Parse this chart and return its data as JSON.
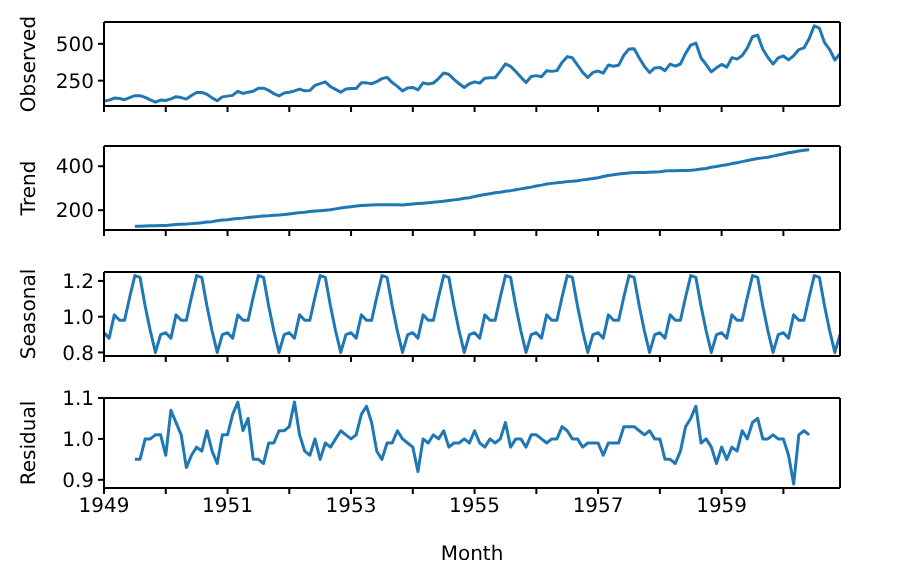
{
  "chart_data": [
    {
      "type": "line",
      "ylabel": "Observed",
      "tick_labels": "y",
      "xlim": [
        "1949-01",
        "1960-12"
      ],
      "ylim": [
        78,
        648
      ],
      "yticks": [
        250,
        500
      ],
      "xticks": [
        {
          "value": "1949-01",
          "label": null
        },
        {
          "value": "1950-01",
          "label": null
        },
        {
          "value": "1951-01",
          "label": null
        },
        {
          "value": "1952-01",
          "label": null
        },
        {
          "value": "1953-01",
          "label": null
        },
        {
          "value": "1954-01",
          "label": null
        },
        {
          "value": "1955-01",
          "label": null
        },
        {
          "value": "1956-01",
          "label": null
        },
        {
          "value": "1957-01",
          "label": null
        },
        {
          "value": "1958-01",
          "label": null
        },
        {
          "value": "1959-01",
          "label": null
        },
        {
          "value": "1960-01",
          "label": null
        }
      ],
      "x": [
        "1949-01",
        "1949-02",
        "1949-03",
        "1949-04",
        "1949-05",
        "1949-06",
        "1949-07",
        "1949-08",
        "1949-09",
        "1949-10",
        "1949-11",
        "1949-12",
        "1950-01",
        "1950-02",
        "1950-03",
        "1950-04",
        "1950-05",
        "1950-06",
        "1950-07",
        "1950-08",
        "1950-09",
        "1950-10",
        "1950-11",
        "1950-12",
        "1951-01",
        "1951-02",
        "1951-03",
        "1951-04",
        "1951-05",
        "1951-06",
        "1951-07",
        "1951-08",
        "1951-09",
        "1951-10",
        "1951-11",
        "1951-12",
        "1952-01",
        "1952-02",
        "1952-03",
        "1952-04",
        "1952-05",
        "1952-06",
        "1952-07",
        "1952-08",
        "1952-09",
        "1952-10",
        "1952-11",
        "1952-12",
        "1953-01",
        "1953-02",
        "1953-03",
        "1953-04",
        "1953-05",
        "1953-06",
        "1953-07",
        "1953-08",
        "1953-09",
        "1953-10",
        "1953-11",
        "1953-12",
        "1954-01",
        "1954-02",
        "1954-03",
        "1954-04",
        "1954-05",
        "1954-06",
        "1954-07",
        "1954-08",
        "1954-09",
        "1954-10",
        "1954-11",
        "1954-12",
        "1955-01",
        "1955-02",
        "1955-03",
        "1955-04",
        "1955-05",
        "1955-06",
        "1955-07",
        "1955-08",
        "1955-09",
        "1955-10",
        "1955-11",
        "1955-12",
        "1956-01",
        "1956-02",
        "1956-03",
        "1956-04",
        "1956-05",
        "1956-06",
        "1956-07",
        "1956-08",
        "1956-09",
        "1956-10",
        "1956-11",
        "1956-12",
        "1957-01",
        "1957-02",
        "1957-03",
        "1957-04",
        "1957-05",
        "1957-06",
        "1957-07",
        "1957-08",
        "1957-09",
        "1957-10",
        "1957-11",
        "1957-12",
        "1958-01",
        "1958-02",
        "1958-03",
        "1958-04",
        "1958-05",
        "1958-06",
        "1958-07",
        "1958-08",
        "1958-09",
        "1958-10",
        "1958-11",
        "1958-12",
        "1959-01",
        "1959-02",
        "1959-03",
        "1959-04",
        "1959-05",
        "1959-06",
        "1959-07",
        "1959-08",
        "1959-09",
        "1959-10",
        "1959-11",
        "1959-12",
        "1960-01",
        "1960-02",
        "1960-03",
        "1960-04",
        "1960-05",
        "1960-06",
        "1960-07",
        "1960-08",
        "1960-09",
        "1960-10",
        "1960-11",
        "1960-12"
      ],
      "series": [
        {
          "color": "#1f77b4",
          "values": [
            112,
            118,
            132,
            129,
            121,
            135,
            148,
            148,
            136,
            119,
            104,
            118,
            115,
            126,
            141,
            135,
            125,
            149,
            170,
            170,
            158,
            133,
            114,
            140,
            145,
            150,
            178,
            163,
            172,
            178,
            199,
            199,
            184,
            162,
            146,
            166,
            171,
            180,
            193,
            181,
            183,
            218,
            230,
            242,
            209,
            191,
            172,
            194,
            196,
            196,
            236,
            235,
            229,
            243,
            264,
            272,
            237,
            211,
            180,
            201,
            204,
            188,
            235,
            227,
            234,
            264,
            302,
            293,
            259,
            229,
            203,
            229,
            242,
            233,
            267,
            269,
            270,
            315,
            364,
            347,
            312,
            274,
            237,
            278,
            284,
            277,
            317,
            313,
            318,
            374,
            413,
            405,
            355,
            306,
            271,
            306,
            315,
            301,
            356,
            348,
            355,
            422,
            465,
            467,
            404,
            347,
            305,
            336,
            340,
            318,
            362,
            348,
            363,
            435,
            491,
            505,
            404,
            359,
            310,
            337,
            360,
            342,
            406,
            396,
            420,
            472,
            548,
            559,
            463,
            407,
            362,
            405,
            417,
            391,
            419,
            461,
            472,
            535,
            622,
            606,
            508,
            461,
            390,
            432
          ]
        }
      ]
    },
    {
      "type": "line",
      "ylabel": "Trend",
      "tick_labels": "y",
      "xlim": [
        "1949-01",
        "1960-12"
      ],
      "ylim": [
        110,
        492
      ],
      "yticks": [
        200,
        400
      ],
      "xticks": [
        {
          "value": "1949-01",
          "label": null
        },
        {
          "value": "1950-01",
          "label": null
        },
        {
          "value": "1951-01",
          "label": null
        },
        {
          "value": "1952-01",
          "label": null
        },
        {
          "value": "1953-01",
          "label": null
        },
        {
          "value": "1954-01",
          "label": null
        },
        {
          "value": "1955-01",
          "label": null
        },
        {
          "value": "1956-01",
          "label": null
        },
        {
          "value": "1957-01",
          "label": null
        },
        {
          "value": "1958-01",
          "label": null
        },
        {
          "value": "1959-01",
          "label": null
        },
        {
          "value": "1960-01",
          "label": null
        }
      ],
      "x": [
        "1949-07",
        "1949-08",
        "1949-09",
        "1949-10",
        "1949-11",
        "1949-12",
        "1950-01",
        "1950-02",
        "1950-03",
        "1950-04",
        "1950-05",
        "1950-06",
        "1950-07",
        "1950-08",
        "1950-09",
        "1950-10",
        "1950-11",
        "1950-12",
        "1951-01",
        "1951-02",
        "1951-03",
        "1951-04",
        "1951-05",
        "1951-06",
        "1951-07",
        "1951-08",
        "1951-09",
        "1951-10",
        "1951-11",
        "1951-12",
        "1952-01",
        "1952-02",
        "1952-03",
        "1952-04",
        "1952-05",
        "1952-06",
        "1952-07",
        "1952-08",
        "1952-09",
        "1952-10",
        "1952-11",
        "1952-12",
        "1953-01",
        "1953-02",
        "1953-03",
        "1953-04",
        "1953-05",
        "1953-06",
        "1953-07",
        "1953-08",
        "1953-09",
        "1953-10",
        "1953-11",
        "1953-12",
        "1954-01",
        "1954-02",
        "1954-03",
        "1954-04",
        "1954-05",
        "1954-06",
        "1954-07",
        "1954-08",
        "1954-09",
        "1954-10",
        "1954-11",
        "1954-12",
        "1955-01",
        "1955-02",
        "1955-03",
        "1955-04",
        "1955-05",
        "1955-06",
        "1955-07",
        "1955-08",
        "1955-09",
        "1955-10",
        "1955-11",
        "1955-12",
        "1956-01",
        "1956-02",
        "1956-03",
        "1956-04",
        "1956-05",
        "1956-06",
        "1956-07",
        "1956-08",
        "1956-09",
        "1956-10",
        "1956-11",
        "1956-12",
        "1957-01",
        "1957-02",
        "1957-03",
        "1957-04",
        "1957-05",
        "1957-06",
        "1957-07",
        "1957-08",
        "1957-09",
        "1957-10",
        "1957-11",
        "1957-12",
        "1958-01",
        "1958-02",
        "1958-03",
        "1958-04",
        "1958-05",
        "1958-06",
        "1958-07",
        "1958-08",
        "1958-09",
        "1958-10",
        "1958-11",
        "1958-12",
        "1959-01",
        "1959-02",
        "1959-03",
        "1959-04",
        "1959-05",
        "1959-06",
        "1959-07",
        "1959-08",
        "1959-09",
        "1959-10",
        "1959-11",
        "1959-12",
        "1960-01",
        "1960-02",
        "1960-03",
        "1960-04",
        "1960-05",
        "1960-06"
      ],
      "series": [
        {
          "color": "#1f77b4",
          "values": [
            127,
            127,
            128,
            129,
            129,
            130,
            131,
            133,
            135,
            136,
            137,
            139,
            141,
            143,
            146,
            148,
            152,
            155,
            157,
            160,
            162,
            164,
            167,
            169,
            171,
            174,
            175,
            177,
            178,
            180,
            183,
            186,
            189,
            191,
            194,
            196,
            198,
            200,
            202,
            206,
            210,
            213,
            216,
            219,
            221,
            223,
            224,
            225,
            225,
            225,
            225,
            225,
            224,
            226,
            228,
            230,
            232,
            234,
            236,
            238,
            241,
            244,
            247,
            250,
            254,
            257,
            262,
            267,
            271,
            275,
            279,
            282,
            286,
            289,
            293,
            297,
            301,
            305,
            310,
            314,
            319,
            322,
            325,
            327,
            330,
            332,
            334,
            338,
            341,
            344,
            348,
            353,
            358,
            361,
            365,
            367,
            369,
            371,
            372,
            372,
            373,
            374,
            375,
            378,
            380,
            380,
            381,
            381,
            382,
            384,
            387,
            390,
            395,
            399,
            403,
            407,
            412,
            416,
            421,
            426,
            431,
            435,
            438,
            441,
            446,
            451,
            456,
            461,
            465,
            469,
            473,
            475
          ]
        }
      ]
    },
    {
      "type": "line",
      "ylabel": "Seasonal",
      "tick_labels": "y",
      "xlim": [
        "1949-01",
        "1960-12"
      ],
      "ylim": [
        0.78,
        1.25
      ],
      "yticks": [
        0.8,
        {
          "value": 1,
          "label": "1.0"
        },
        1.2
      ],
      "xticks": [
        {
          "value": "1949-01",
          "label": null
        },
        {
          "value": "1950-01",
          "label": null
        },
        {
          "value": "1951-01",
          "label": null
        },
        {
          "value": "1952-01",
          "label": null
        },
        {
          "value": "1953-01",
          "label": null
        },
        {
          "value": "1954-01",
          "label": null
        },
        {
          "value": "1955-01",
          "label": null
        },
        {
          "value": "1956-01",
          "label": null
        },
        {
          "value": "1957-01",
          "label": null
        },
        {
          "value": "1958-01",
          "label": null
        },
        {
          "value": "1959-01",
          "label": null
        },
        {
          "value": "1960-01",
          "label": null
        }
      ],
      "x": [
        "1949-01",
        "1949-02",
        "1949-03",
        "1949-04",
        "1949-05",
        "1949-06",
        "1949-07",
        "1949-08",
        "1949-09",
        "1949-10",
        "1949-11",
        "1949-12",
        "1950-01",
        "1950-02",
        "1950-03",
        "1950-04",
        "1950-05",
        "1950-06",
        "1950-07",
        "1950-08",
        "1950-09",
        "1950-10",
        "1950-11",
        "1950-12",
        "1951-01",
        "1951-02",
        "1951-03",
        "1951-04",
        "1951-05",
        "1951-06",
        "1951-07",
        "1951-08",
        "1951-09",
        "1951-10",
        "1951-11",
        "1951-12",
        "1952-01",
        "1952-02",
        "1952-03",
        "1952-04",
        "1952-05",
        "1952-06",
        "1952-07",
        "1952-08",
        "1952-09",
        "1952-10",
        "1952-11",
        "1952-12",
        "1953-01",
        "1953-02",
        "1953-03",
        "1953-04",
        "1953-05",
        "1953-06",
        "1953-07",
        "1953-08",
        "1953-09",
        "1953-10",
        "1953-11",
        "1953-12",
        "1954-01",
        "1954-02",
        "1954-03",
        "1954-04",
        "1954-05",
        "1954-06",
        "1954-07",
        "1954-08",
        "1954-09",
        "1954-10",
        "1954-11",
        "1954-12",
        "1955-01",
        "1955-02",
        "1955-03",
        "1955-04",
        "1955-05",
        "1955-06",
        "1955-07",
        "1955-08",
        "1955-09",
        "1955-10",
        "1955-11",
        "1955-12",
        "1956-01",
        "1956-02",
        "1956-03",
        "1956-04",
        "1956-05",
        "1956-06",
        "1956-07",
        "1956-08",
        "1956-09",
        "1956-10",
        "1956-11",
        "1956-12",
        "1957-01",
        "1957-02",
        "1957-03",
        "1957-04",
        "1957-05",
        "1957-06",
        "1957-07",
        "1957-08",
        "1957-09",
        "1957-10",
        "1957-11",
        "1957-12",
        "1958-01",
        "1958-02",
        "1958-03",
        "1958-04",
        "1958-05",
        "1958-06",
        "1958-07",
        "1958-08",
        "1958-09",
        "1958-10",
        "1958-11",
        "1958-12",
        "1959-01",
        "1959-02",
        "1959-03",
        "1959-04",
        "1959-05",
        "1959-06",
        "1959-07",
        "1959-08",
        "1959-09",
        "1959-10",
        "1959-11",
        "1959-12",
        "1960-01",
        "1960-02",
        "1960-03",
        "1960-04",
        "1960-05",
        "1960-06",
        "1960-07",
        "1960-08",
        "1960-09",
        "1960-10",
        "1960-11",
        "1960-12"
      ],
      "series": [
        {
          "color": "#1f77b4",
          "values": [
            0.91,
            0.88,
            1.01,
            0.98,
            0.98,
            1.11,
            1.23,
            1.22,
            1.06,
            0.92,
            0.8,
            0.9,
            0.91,
            0.88,
            1.01,
            0.98,
            0.98,
            1.11,
            1.23,
            1.22,
            1.06,
            0.92,
            0.8,
            0.9,
            0.91,
            0.88,
            1.01,
            0.98,
            0.98,
            1.11,
            1.23,
            1.22,
            1.06,
            0.92,
            0.8,
            0.9,
            0.91,
            0.88,
            1.01,
            0.98,
            0.98,
            1.11,
            1.23,
            1.22,
            1.06,
            0.92,
            0.8,
            0.9,
            0.91,
            0.88,
            1.01,
            0.98,
            0.98,
            1.11,
            1.23,
            1.22,
            1.06,
            0.92,
            0.8,
            0.9,
            0.91,
            0.88,
            1.01,
            0.98,
            0.98,
            1.11,
            1.23,
            1.22,
            1.06,
            0.92,
            0.8,
            0.9,
            0.91,
            0.88,
            1.01,
            0.98,
            0.98,
            1.11,
            1.23,
            1.22,
            1.06,
            0.92,
            0.8,
            0.9,
            0.91,
            0.88,
            1.01,
            0.98,
            0.98,
            1.11,
            1.23,
            1.22,
            1.06,
            0.92,
            0.8,
            0.9,
            0.91,
            0.88,
            1.01,
            0.98,
            0.98,
            1.11,
            1.23,
            1.22,
            1.06,
            0.92,
            0.8,
            0.9,
            0.91,
            0.88,
            1.01,
            0.98,
            0.98,
            1.11,
            1.23,
            1.22,
            1.06,
            0.92,
            0.8,
            0.9,
            0.91,
            0.88,
            1.01,
            0.98,
            0.98,
            1.11,
            1.23,
            1.22,
            1.06,
            0.92,
            0.8,
            0.9,
            0.91,
            0.88,
            1.01,
            0.98,
            0.98,
            1.11,
            1.23,
            1.22,
            1.06,
            0.92,
            0.8,
            0.9
          ]
        }
      ]
    },
    {
      "type": "line",
      "ylabel": "Residual",
      "xlabel": "Month",
      "xlim": [
        "1949-01",
        "1960-12"
      ],
      "ylim": [
        0.88,
        1.1
      ],
      "yticks": [
        0.9,
        {
          "value": 1,
          "label": "1.0"
        },
        1.1
      ],
      "xticks": [
        {
          "value": "1949-01",
          "label": "1949"
        },
        {
          "value": "1950-01",
          "label": null
        },
        {
          "value": "1951-01",
          "label": "1951"
        },
        {
          "value": "1952-01",
          "label": null
        },
        {
          "value": "1953-01",
          "label": "1953"
        },
        {
          "value": "1954-01",
          "label": null
        },
        {
          "value": "1955-01",
          "label": "1955"
        },
        {
          "value": "1956-01",
          "label": null
        },
        {
          "value": "1957-01",
          "label": "1957"
        },
        {
          "value": "1958-01",
          "label": null
        },
        {
          "value": "1959-01",
          "label": "1959"
        },
        {
          "value": "1960-01",
          "label": null
        }
      ],
      "x": [
        "1949-07",
        "1949-08",
        "1949-09",
        "1949-10",
        "1949-11",
        "1949-12",
        "1950-01",
        "1950-02",
        "1950-03",
        "1950-04",
        "1950-05",
        "1950-06",
        "1950-07",
        "1950-08",
        "1950-09",
        "1950-10",
        "1950-11",
        "1950-12",
        "1951-01",
        "1951-02",
        "1951-03",
        "1951-04",
        "1951-05",
        "1951-06",
        "1951-07",
        "1951-08",
        "1951-09",
        "1951-10",
        "1951-11",
        "1951-12",
        "1952-01",
        "1952-02",
        "1952-03",
        "1952-04",
        "1952-05",
        "1952-06",
        "1952-07",
        "1952-08",
        "1952-09",
        "1952-10",
        "1952-11",
        "1952-12",
        "1953-01",
        "1953-02",
        "1953-03",
        "1953-04",
        "1953-05",
        "1953-06",
        "1953-07",
        "1953-08",
        "1953-09",
        "1953-10",
        "1953-11",
        "1953-12",
        "1954-01",
        "1954-02",
        "1954-03",
        "1954-04",
        "1954-05",
        "1954-06",
        "1954-07",
        "1954-08",
        "1954-09",
        "1954-10",
        "1954-11",
        "1954-12",
        "1955-01",
        "1955-02",
        "1955-03",
        "1955-04",
        "1955-05",
        "1955-06",
        "1955-07",
        "1955-08",
        "1955-09",
        "1955-10",
        "1955-11",
        "1955-12",
        "1956-01",
        "1956-02",
        "1956-03",
        "1956-04",
        "1956-05",
        "1956-06",
        "1956-07",
        "1956-08",
        "1956-09",
        "1956-10",
        "1956-11",
        "1956-12",
        "1957-01",
        "1957-02",
        "1957-03",
        "1957-04",
        "1957-05",
        "1957-06",
        "1957-07",
        "1957-08",
        "1957-09",
        "1957-10",
        "1957-11",
        "1957-12",
        "1958-01",
        "1958-02",
        "1958-03",
        "1958-04",
        "1958-05",
        "1958-06",
        "1958-07",
        "1958-08",
        "1958-09",
        "1958-10",
        "1958-11",
        "1958-12",
        "1959-01",
        "1959-02",
        "1959-03",
        "1959-04",
        "1959-05",
        "1959-06",
        "1959-07",
        "1959-08",
        "1959-09",
        "1959-10",
        "1959-11",
        "1959-12",
        "1960-01",
        "1960-02",
        "1960-03",
        "1960-04",
        "1960-05",
        "1960-06"
      ],
      "series": [
        {
          "color": "#1f77b4",
          "values": [
            0.95,
            0.95,
            1.0,
            1.0,
            1.01,
            1.01,
            0.96,
            1.07,
            1.04,
            1.01,
            0.93,
            0.96,
            0.98,
            0.97,
            1.02,
            0.97,
            0.94,
            1.01,
            1.01,
            1.06,
            1.09,
            1.02,
            1.05,
            0.95,
            0.95,
            0.94,
            0.99,
            0.99,
            1.02,
            1.02,
            1.03,
            1.09,
            1.01,
            0.97,
            0.96,
            1.0,
            0.95,
            0.99,
            0.98,
            1.0,
            1.02,
            1.01,
            1.0,
            1.01,
            1.06,
            1.08,
            1.04,
            0.97,
            0.95,
            0.99,
            0.99,
            1.02,
            1.0,
            0.99,
            0.98,
            0.92,
            1.0,
            0.99,
            1.01,
            1.0,
            1.02,
            0.98,
            0.99,
            0.99,
            1.0,
            0.99,
            1.02,
            0.99,
            0.98,
            1.0,
            0.99,
            1.0,
            1.04,
            0.98,
            1.0,
            1.0,
            0.98,
            1.01,
            1.01,
            1.0,
            0.99,
            1.0,
            1.0,
            1.03,
            1.02,
            1.0,
            1.0,
            0.98,
            0.99,
            0.99,
            0.99,
            0.96,
            0.99,
            0.99,
            0.99,
            1.03,
            1.03,
            1.03,
            1.02,
            1.01,
            1.02,
            1.0,
            1.0,
            0.95,
            0.95,
            0.94,
            0.97,
            1.03,
            1.05,
            1.08,
            0.99,
            1.0,
            0.98,
            0.94,
            0.98,
            0.95,
            0.98,
            0.97,
            1.02,
            1.0,
            1.04,
            1.05,
            1.0,
            1.0,
            1.01,
            1.0,
            1.0,
            0.96,
            0.89,
            1.01,
            1.02,
            1.01
          ]
        }
      ]
    }
  ]
}
